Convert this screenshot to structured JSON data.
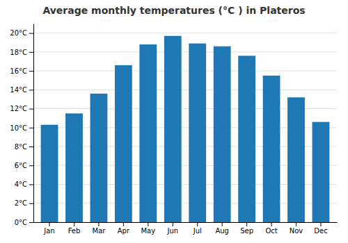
{
  "chart_data": {
    "type": "bar",
    "title": "Average monthly temperatures (°C ) in Plateros",
    "categories": [
      "Jan",
      "Feb",
      "Mar",
      "Apr",
      "May",
      "Jun",
      "Jul",
      "Aug",
      "Sep",
      "Oct",
      "Nov",
      "Dec"
    ],
    "values": [
      10.3,
      11.5,
      13.6,
      16.6,
      18.8,
      19.7,
      18.9,
      18.6,
      17.6,
      15.5,
      13.2,
      10.6
    ],
    "ylim": [
      0,
      21
    ],
    "yticks": [
      {
        "value": 0,
        "label": "0°C"
      },
      {
        "value": 2,
        "label": "2°C"
      },
      {
        "value": 4,
        "label": "4°C"
      },
      {
        "value": 6,
        "label": "6°C"
      },
      {
        "value": 8,
        "label": "8°C"
      },
      {
        "value": 10,
        "label": "10°C"
      },
      {
        "value": 12,
        "label": "12°C"
      },
      {
        "value": 14,
        "label": "14°C"
      },
      {
        "value": 16,
        "label": "16°C"
      },
      {
        "value": 18,
        "label": "18°C"
      },
      {
        "value": 20,
        "label": "20°C"
      }
    ],
    "grid": true
  }
}
